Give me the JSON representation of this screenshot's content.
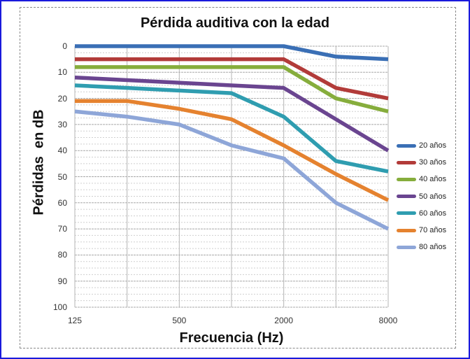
{
  "chart_data": {
    "type": "line",
    "title": "Pérdida auditiva con la edad",
    "xlabel": "Frecuencia (Hz)",
    "ylabel": "Pérdidas  en dB",
    "x": [
      125,
      250,
      500,
      1000,
      2000,
      4000,
      8000
    ],
    "x_scale": "log2",
    "x_tick_labels": [
      "125",
      "500",
      "2000",
      "8000"
    ],
    "y_tick_labels": [
      "0",
      "10",
      "20",
      "30",
      "40",
      "50",
      "60",
      "70",
      "80",
      "90",
      "100"
    ],
    "ylim": [
      0,
      100
    ],
    "y_inverted": true,
    "grid": true,
    "legend_position": "right",
    "series": [
      {
        "name": "20 años",
        "color": "#3a6fb5",
        "values": [
          0,
          0,
          0,
          0,
          0,
          4,
          5
        ]
      },
      {
        "name": "30 años",
        "color": "#b23b39",
        "values": [
          5,
          5,
          5,
          5,
          5,
          16,
          20
        ]
      },
      {
        "name": "40 años",
        "color": "#86ad3c",
        "values": [
          8,
          8,
          8,
          8,
          8,
          20,
          25
        ]
      },
      {
        "name": "50 años",
        "color": "#6a4590",
        "values": [
          12,
          13,
          14,
          15,
          16,
          28,
          40
        ]
      },
      {
        "name": "60 años",
        "color": "#2f9db0",
        "values": [
          15,
          16,
          17,
          18,
          27,
          44,
          48
        ]
      },
      {
        "name": "70 años",
        "color": "#e5822f",
        "values": [
          21,
          21,
          24,
          28,
          38,
          49,
          59
        ]
      },
      {
        "name": "80 años",
        "color": "#8ea6d8",
        "values": [
          25,
          27,
          30,
          38,
          43,
          60,
          70
        ]
      }
    ]
  }
}
